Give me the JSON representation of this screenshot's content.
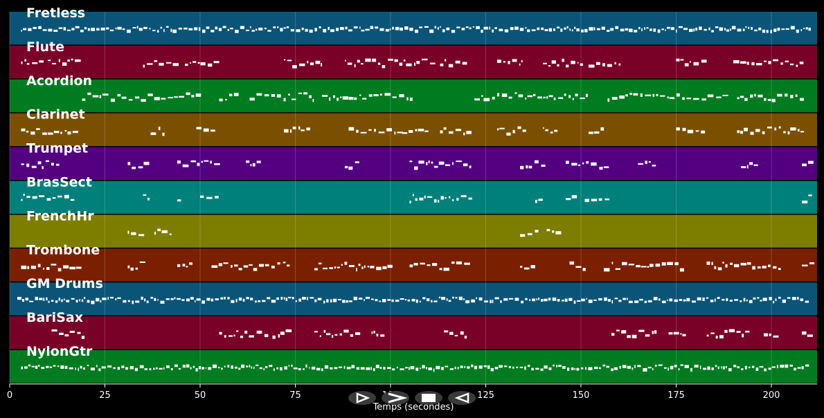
{
  "xlabel": "Temps (secondes)",
  "chart_data": {
    "type": "piano-roll",
    "xlim": [
      0,
      212
    ],
    "x_ticks": [
      0,
      25,
      50,
      75,
      100,
      125,
      150,
      175,
      200
    ],
    "tracks": [
      {
        "name": "Fretless",
        "color": "#0a5478",
        "density": "dense",
        "segments": [
          [
            3,
            210
          ]
        ]
      },
      {
        "name": "Flute",
        "color": "#790027",
        "density": "sparse",
        "segments": [
          [
            3,
            9
          ],
          [
            10,
            18
          ],
          [
            35,
            44
          ],
          [
            46,
            55
          ],
          [
            72,
            82
          ],
          [
            88,
            100
          ],
          [
            101,
            112
          ],
          [
            113,
            120
          ],
          [
            128,
            135
          ],
          [
            140,
            150
          ],
          [
            152,
            160
          ],
          [
            175,
            182
          ],
          [
            190,
            208
          ]
        ]
      },
      {
        "name": "Acordion",
        "color": "#007b1f",
        "density": "sparse",
        "segments": [
          [
            19,
            50
          ],
          [
            55,
            60
          ],
          [
            63,
            80
          ],
          [
            82,
            88
          ],
          [
            89,
            106
          ],
          [
            122,
            152
          ],
          [
            157,
            188
          ],
          [
            191,
            208
          ]
        ]
      },
      {
        "name": "Clarinet",
        "color": "#7a5000",
        "density": "sparse",
        "segments": [
          [
            3,
            9
          ],
          [
            10,
            18
          ],
          [
            37,
            41
          ],
          [
            49,
            53
          ],
          [
            72,
            79
          ],
          [
            89,
            102
          ],
          [
            103,
            110
          ],
          [
            113,
            121
          ],
          [
            128,
            135
          ],
          [
            140,
            144
          ],
          [
            152,
            156
          ],
          [
            175,
            182
          ],
          [
            191,
            208
          ]
        ]
      },
      {
        "name": "Trumpet",
        "color": "#530080",
        "density": "sparse",
        "segments": [
          [
            3,
            13
          ],
          [
            31,
            37
          ],
          [
            44,
            54
          ],
          [
            62,
            66
          ],
          [
            88,
            92
          ],
          [
            105,
            121
          ],
          [
            134,
            140
          ],
          [
            146,
            157
          ],
          [
            165,
            169
          ],
          [
            192,
            196
          ],
          [
            208,
            210
          ]
        ]
      },
      {
        "name": "BrasSect",
        "color": "#00807b",
        "density": "sparse",
        "segments": [
          [
            3,
            17
          ],
          [
            35,
            37
          ],
          [
            44,
            45
          ],
          [
            50,
            54
          ],
          [
            105,
            121
          ],
          [
            138,
            139
          ],
          [
            146,
            148
          ],
          [
            151,
            157
          ],
          [
            208,
            210
          ]
        ]
      },
      {
        "name": "FrenchHr",
        "color": "#7d7d00",
        "density": "sparse",
        "segments": [
          [
            31,
            35
          ],
          [
            38,
            42
          ],
          [
            134,
            138
          ],
          [
            141,
            145
          ]
        ]
      },
      {
        "name": "Trombone",
        "color": "#7a2000",
        "density": "sparse",
        "segments": [
          [
            3,
            18
          ],
          [
            31,
            35
          ],
          [
            44,
            48
          ],
          [
            53,
            73
          ],
          [
            80,
            100
          ],
          [
            105,
            120
          ],
          [
            134,
            137
          ],
          [
            147,
            151
          ],
          [
            156,
            177
          ],
          [
            183,
            202
          ],
          [
            208,
            210
          ]
        ]
      },
      {
        "name": "GM Drums",
        "color": "#0a5478",
        "density": "dense",
        "segments": [
          [
            2,
            210
          ]
        ]
      },
      {
        "name": "BariSax",
        "color": "#790027",
        "density": "sparse",
        "segments": [
          [
            11,
            19
          ],
          [
            55,
            67
          ],
          [
            69,
            73
          ],
          [
            80,
            92
          ],
          [
            95,
            98
          ],
          [
            114,
            120
          ],
          [
            158,
            170
          ],
          [
            173,
            177
          ],
          [
            183,
            194
          ],
          [
            198,
            202
          ],
          [
            208,
            210
          ]
        ]
      },
      {
        "name": "NylonGtr",
        "color": "#007b1f",
        "density": "dense",
        "segments": [
          [
            3,
            209
          ]
        ]
      }
    ]
  },
  "controls": [
    {
      "name": "play-from-start-button",
      "icon": "play-outline-icon"
    },
    {
      "name": "play-button",
      "icon": "play-icon"
    },
    {
      "name": "stop-button",
      "icon": "stop-icon"
    },
    {
      "name": "rewind-button",
      "icon": "rewind-icon"
    }
  ]
}
